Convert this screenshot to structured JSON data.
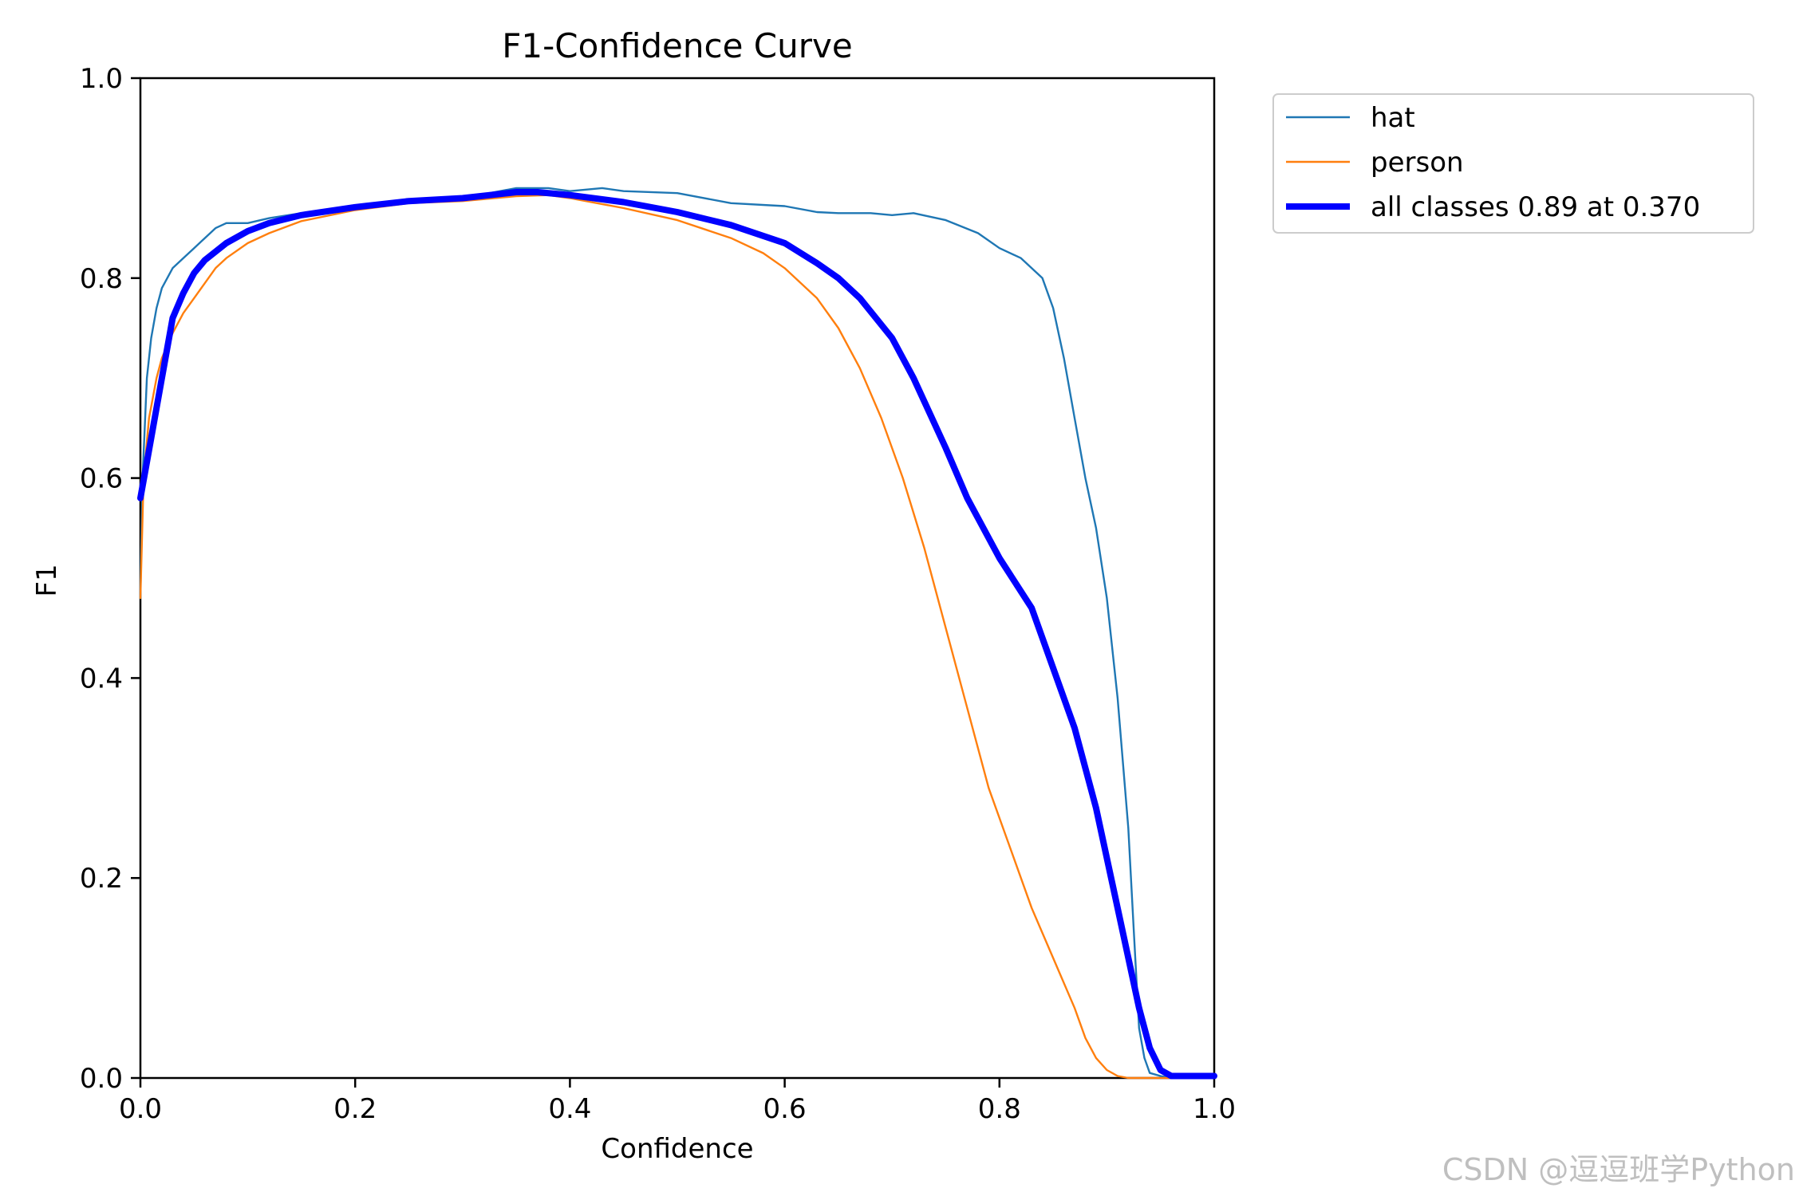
{
  "chart_data": {
    "type": "line",
    "title": "F1-Confidence Curve",
    "xlabel": "Confidence",
    "ylabel": "F1",
    "xlim": [
      0.0,
      1.0
    ],
    "ylim": [
      0.0,
      1.0
    ],
    "xticks": [
      "0.0",
      "0.2",
      "0.4",
      "0.6",
      "0.8",
      "1.0"
    ],
    "yticks": [
      "0.0",
      "0.2",
      "0.4",
      "0.6",
      "0.8",
      "1.0"
    ],
    "grid": false,
    "legend_position": "outside-top-right",
    "series": [
      {
        "name": "hat",
        "color": "#1f77b4",
        "line_style": "thin",
        "x": [
          0.0,
          0.002,
          0.006,
          0.01,
          0.015,
          0.02,
          0.03,
          0.04,
          0.05,
          0.06,
          0.07,
          0.08,
          0.1,
          0.12,
          0.15,
          0.2,
          0.25,
          0.3,
          0.35,
          0.38,
          0.4,
          0.43,
          0.45,
          0.5,
          0.55,
          0.6,
          0.63,
          0.65,
          0.68,
          0.7,
          0.72,
          0.75,
          0.78,
          0.8,
          0.82,
          0.84,
          0.85,
          0.86,
          0.87,
          0.88,
          0.89,
          0.9,
          0.91,
          0.92,
          0.925,
          0.93,
          0.935,
          0.94,
          0.95,
          0.96,
          1.0
        ],
        "values": [
          0.48,
          0.6,
          0.7,
          0.74,
          0.77,
          0.79,
          0.81,
          0.82,
          0.83,
          0.84,
          0.85,
          0.855,
          0.855,
          0.86,
          0.865,
          0.87,
          0.877,
          0.88,
          0.89,
          0.89,
          0.887,
          0.89,
          0.887,
          0.885,
          0.875,
          0.872,
          0.866,
          0.865,
          0.865,
          0.863,
          0.865,
          0.858,
          0.845,
          0.83,
          0.82,
          0.8,
          0.77,
          0.72,
          0.66,
          0.6,
          0.55,
          0.48,
          0.38,
          0.25,
          0.15,
          0.05,
          0.02,
          0.005,
          0.002,
          0.0,
          0.0
        ]
      },
      {
        "name": "person",
        "color": "#ff7f0e",
        "line_style": "thin",
        "x": [
          0.0,
          0.003,
          0.008,
          0.015,
          0.02,
          0.03,
          0.04,
          0.05,
          0.06,
          0.07,
          0.08,
          0.1,
          0.12,
          0.15,
          0.2,
          0.25,
          0.3,
          0.35,
          0.38,
          0.4,
          0.45,
          0.5,
          0.55,
          0.58,
          0.6,
          0.63,
          0.65,
          0.67,
          0.69,
          0.71,
          0.73,
          0.75,
          0.77,
          0.79,
          0.81,
          0.83,
          0.85,
          0.87,
          0.88,
          0.89,
          0.9,
          0.91,
          0.92,
          0.94,
          0.96,
          1.0
        ],
        "values": [
          0.48,
          0.6,
          0.66,
          0.7,
          0.72,
          0.745,
          0.765,
          0.78,
          0.795,
          0.81,
          0.82,
          0.835,
          0.845,
          0.857,
          0.868,
          0.875,
          0.877,
          0.882,
          0.883,
          0.88,
          0.87,
          0.858,
          0.84,
          0.825,
          0.81,
          0.78,
          0.75,
          0.71,
          0.66,
          0.6,
          0.53,
          0.45,
          0.37,
          0.29,
          0.23,
          0.17,
          0.12,
          0.07,
          0.04,
          0.02,
          0.008,
          0.002,
          0.0,
          0.0,
          0.0,
          0.0
        ]
      },
      {
        "name": "all classes 0.89 at 0.370",
        "color": "#0000ff",
        "line_style": "thick",
        "x": [
          0.0,
          0.01,
          0.02,
          0.03,
          0.04,
          0.05,
          0.06,
          0.08,
          0.1,
          0.12,
          0.15,
          0.2,
          0.25,
          0.3,
          0.35,
          0.37,
          0.4,
          0.45,
          0.5,
          0.55,
          0.6,
          0.63,
          0.65,
          0.67,
          0.7,
          0.72,
          0.75,
          0.77,
          0.8,
          0.83,
          0.85,
          0.87,
          0.89,
          0.91,
          0.93,
          0.94,
          0.95,
          0.96,
          0.98,
          1.0
        ],
        "values": [
          0.58,
          0.64,
          0.7,
          0.76,
          0.785,
          0.805,
          0.818,
          0.835,
          0.847,
          0.855,
          0.863,
          0.871,
          0.877,
          0.88,
          0.886,
          0.886,
          0.883,
          0.876,
          0.866,
          0.853,
          0.835,
          0.815,
          0.8,
          0.78,
          0.74,
          0.7,
          0.63,
          0.58,
          0.52,
          0.47,
          0.41,
          0.35,
          0.27,
          0.17,
          0.07,
          0.03,
          0.008,
          0.002,
          0.002,
          0.002
        ]
      }
    ]
  },
  "watermark": "CSDN @逗逗班学Python"
}
